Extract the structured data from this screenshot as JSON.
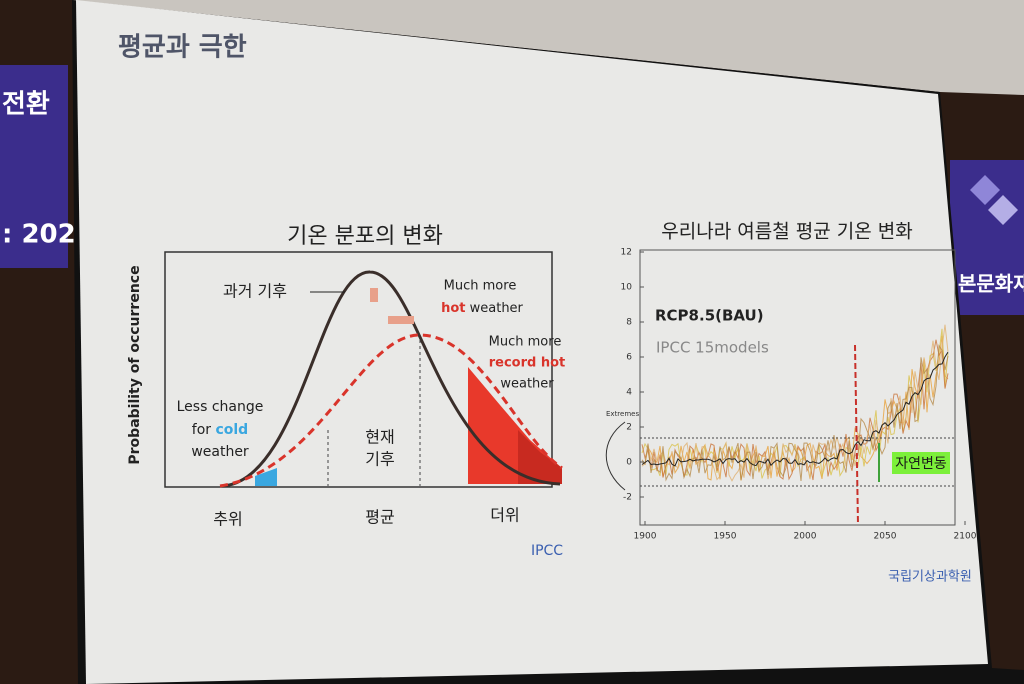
{
  "background": {
    "left_banner": [
      "전환",
      ": 202"
    ],
    "right_banner": "본문화재"
  },
  "slide": {
    "title": "평균과 극한",
    "left_chart": {
      "title": "기온 분포의 변화",
      "y_axis_label": "Probability of occurrence",
      "past_label": "과거 기후",
      "present_label": [
        "현재",
        "기후"
      ],
      "cold_note": [
        "Less change",
        "for",
        "cold",
        "weather"
      ],
      "hot_note": [
        "Much more",
        "hot",
        "weather"
      ],
      "record_note": [
        "Much more",
        "record hot",
        "weather"
      ],
      "x_labels": [
        "추위",
        "평균",
        "더위"
      ],
      "source": "IPCC"
    },
    "right_chart": {
      "title": "우리나라 여름철 평균 기온 변화",
      "scenario": "RCP8.5(BAU)",
      "models": "IPCC 15models",
      "inset_label": "Extremes",
      "band_label": "자연변동",
      "yticks": [
        12,
        10,
        8,
        6,
        4,
        2,
        0,
        -2
      ],
      "xticks": [
        1900,
        1950,
        2000,
        2050,
        2100
      ],
      "source": "국립기상과학원"
    }
  }
}
